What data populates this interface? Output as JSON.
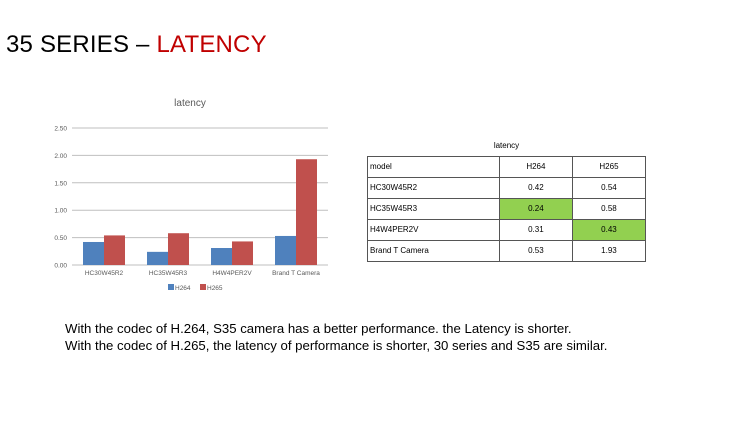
{
  "slide": {
    "title_prefix": "35 SERIES – ",
    "title_accent": "LATENCY",
    "accent_color": "#c00000"
  },
  "chart_data": {
    "type": "bar",
    "title": "latency",
    "xlabel": "",
    "ylabel": "",
    "categories": [
      "HC30W45R2",
      "HC35W45R3",
      "H4W4PER2V",
      "Brand T Camera"
    ],
    "series": [
      {
        "name": "H264",
        "color": "#4f81bd",
        "values": [
          0.42,
          0.24,
          0.31,
          0.53
        ]
      },
      {
        "name": "H265",
        "color": "#c0504d",
        "values": [
          0.54,
          0.58,
          0.43,
          1.93
        ]
      }
    ],
    "ylim": [
      0,
      2.5
    ],
    "yticks": [
      "0.00",
      "0.50",
      "1.00",
      "1.50",
      "2.00",
      "2.50"
    ],
    "grid": true,
    "legend": "bottom"
  },
  "table": {
    "caption": "latency",
    "headers": [
      "model",
      "H264",
      "H265"
    ],
    "rows": [
      {
        "model": "HC30W45R2",
        "h264": "0.42",
        "h265": "0.54",
        "hl": ""
      },
      {
        "model": "HC35W45R3",
        "h264": "0.24",
        "h265": "0.58",
        "hl": "h264"
      },
      {
        "model": "H4W4PER2V",
        "h264": "0.31",
        "h265": "0.43",
        "hl": "h265"
      },
      {
        "model": "Brand T Camera",
        "h264": "0.53",
        "h265": "1.93",
        "hl": ""
      }
    ],
    "highlight_color": "#92d050"
  },
  "summary": {
    "line1": "With the codec of H.264, S35 camera has a better performance. the Latency is shorter.",
    "line2": "With the codec of H.265, the latency of performance is shorter, 30 series and S35 are similar."
  }
}
